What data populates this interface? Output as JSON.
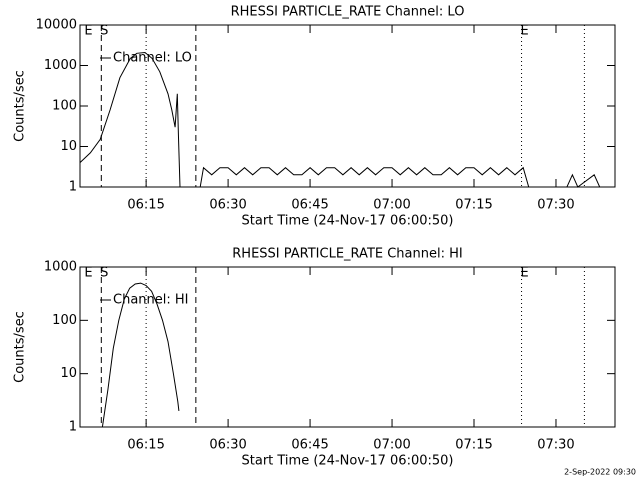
{
  "chart_data": [
    {
      "type": "line",
      "title": "RHESSI PARTICLE_RATE Channel: LO",
      "x_label": "Start Time (24-Nov-17 06:00:50)",
      "y_label": "Counts/sec",
      "log_y": true,
      "legend": "upper left",
      "color": "#000000",
      "xlim": [
        2.9,
        100.8
      ],
      "ylim": [
        1,
        10000
      ],
      "xticks": [
        {
          "value": 15,
          "label": "06:15"
        },
        {
          "value": 30,
          "label": "06:30"
        },
        {
          "value": 45,
          "label": "06:45"
        },
        {
          "value": 60,
          "label": "07:00"
        },
        {
          "value": 75,
          "label": "07:15"
        },
        {
          "value": 90,
          "label": "07:30"
        }
      ],
      "yticks": [
        1,
        10,
        100,
        1000,
        10000
      ],
      "vlines": [
        {
          "x": 3.9,
          "style": "none",
          "label": "E"
        },
        {
          "x": 6.8,
          "style": "dashed",
          "label": "S"
        },
        {
          "x": 24.1,
          "style": "dashed"
        },
        {
          "x": 15.0,
          "style": "dotted"
        },
        {
          "x": 83.7,
          "style": "dotted",
          "label": "E"
        },
        {
          "x": 95.2,
          "style": "dotted"
        }
      ],
      "series": [
        {
          "name": "Channel: LO",
          "color": "#000000",
          "x": [
            2.9,
            4.8,
            6.6,
            8.4,
            10.2,
            12.1,
            13.3,
            14.8,
            16.1,
            17.5,
            19.0,
            19.7,
            20.3,
            20.7,
            20.9,
            21.2,
            24.9,
            25.5,
            27,
            28.5,
            30,
            31.5,
            33,
            34.5,
            36,
            37.5,
            39,
            40.5,
            42,
            43.5,
            45,
            46.5,
            48,
            49.5,
            51,
            52.5,
            54,
            55.5,
            57,
            58.5,
            60,
            61.5,
            63,
            64.5,
            66,
            67.5,
            69,
            70.5,
            72,
            73.5,
            75,
            76.5,
            78,
            79.5,
            81,
            82.5,
            84,
            85,
            92,
            93,
            94,
            97,
            98,
            100.8
          ],
          "values": [
            4,
            7,
            15,
            80,
            500,
            1500,
            2000,
            2100,
            1500,
            700,
            200,
            80,
            30,
            200,
            20,
            1,
            1,
            3,
            2,
            3,
            3,
            2,
            3,
            2,
            3,
            3,
            2,
            3,
            2,
            2,
            3,
            2,
            3,
            3,
            2,
            3,
            2,
            3,
            2,
            3,
            3,
            2,
            3,
            2,
            3,
            2,
            2,
            3,
            2,
            3,
            3,
            2,
            3,
            2,
            3,
            2,
            3,
            1,
            1,
            2,
            1,
            2,
            1,
            1
          ]
        }
      ]
    },
    {
      "type": "line",
      "title": "RHESSI PARTICLE_RATE Channel: HI",
      "x_label": "Start Time (24-Nov-17 06:00:50)",
      "y_label": "Counts/sec",
      "log_y": true,
      "legend": "upper left",
      "color": "#000000",
      "xlim": [
        2.9,
        100.8
      ],
      "ylim": [
        1,
        1000
      ],
      "xticks": [
        {
          "value": 15,
          "label": "06:15"
        },
        {
          "value": 30,
          "label": "06:30"
        },
        {
          "value": 45,
          "label": "06:45"
        },
        {
          "value": 60,
          "label": "07:00"
        },
        {
          "value": 75,
          "label": "07:15"
        },
        {
          "value": 90,
          "label": "07:30"
        }
      ],
      "yticks": [
        1,
        10,
        100,
        1000
      ],
      "vlines": [
        {
          "x": 3.9,
          "style": "none",
          "label": "E"
        },
        {
          "x": 6.8,
          "style": "dashed",
          "label": "S"
        },
        {
          "x": 24.1,
          "style": "dashed"
        },
        {
          "x": 15.0,
          "style": "dotted"
        },
        {
          "x": 83.7,
          "style": "dotted",
          "label": "E"
        },
        {
          "x": 95.2,
          "style": "dotted"
        }
      ],
      "series": [
        {
          "name": "Channel: HI",
          "color": "#000000",
          "x": [
            7.0,
            8,
            9,
            10,
            11,
            12,
            13,
            14,
            15,
            16,
            17,
            18,
            19,
            20,
            20.8,
            21
          ],
          "values": [
            1,
            5,
            30,
            100,
            250,
            400,
            480,
            500,
            450,
            350,
            200,
            100,
            40,
            10,
            3,
            2
          ]
        }
      ]
    }
  ],
  "footer": "2-Sep-2022 09:30"
}
